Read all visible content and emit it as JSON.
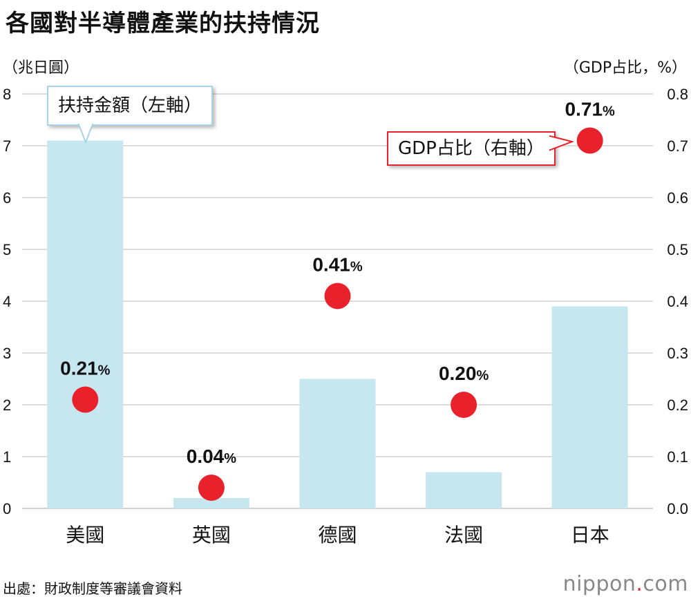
{
  "title": "各國對半導體產業的扶持情況",
  "left_axis_unit": "（兆日圓）",
  "right_axis_unit": "（GDP占比，%）",
  "legend": {
    "bar_label": "扶持金額（左軸）",
    "dot_label": "GDP占比（右軸）"
  },
  "source": "出處：財政制度等審議會資料",
  "brand": {
    "name": "nippon",
    "dot": ".",
    "tld": "com"
  },
  "colors": {
    "bar": "#c6e6f0",
    "dot": "#e8212a",
    "grid": "#d0d0d0",
    "callout_bar_border": "#a8d4e6",
    "callout_gdp_border": "#e8212a"
  },
  "chart_data": {
    "type": "bar",
    "categories": [
      "美國",
      "英國",
      "德國",
      "法國",
      "日本"
    ],
    "series": [
      {
        "name": "扶持金額（左軸）",
        "type": "bar",
        "axis": "left",
        "values": [
          7.1,
          0.2,
          2.5,
          0.7,
          3.9
        ]
      },
      {
        "name": "GDP占比（右軸）",
        "type": "scatter",
        "axis": "right",
        "values": [
          0.21,
          0.04,
          0.41,
          0.2,
          0.71
        ],
        "labels": [
          "0.21%",
          "0.04%",
          "0.41%",
          "0.20%",
          "0.71%"
        ]
      }
    ],
    "ylim_left": [
      0,
      8
    ],
    "ylim_right": [
      0,
      0.8
    ],
    "yticks_left": [
      "0",
      "1",
      "2",
      "3",
      "4",
      "5",
      "6",
      "7",
      "8"
    ],
    "yticks_right": [
      "0.0",
      "0.1",
      "0.2",
      "0.3",
      "0.4",
      "0.5",
      "0.6",
      "0.7",
      "0.8"
    ],
    "grid": true
  }
}
